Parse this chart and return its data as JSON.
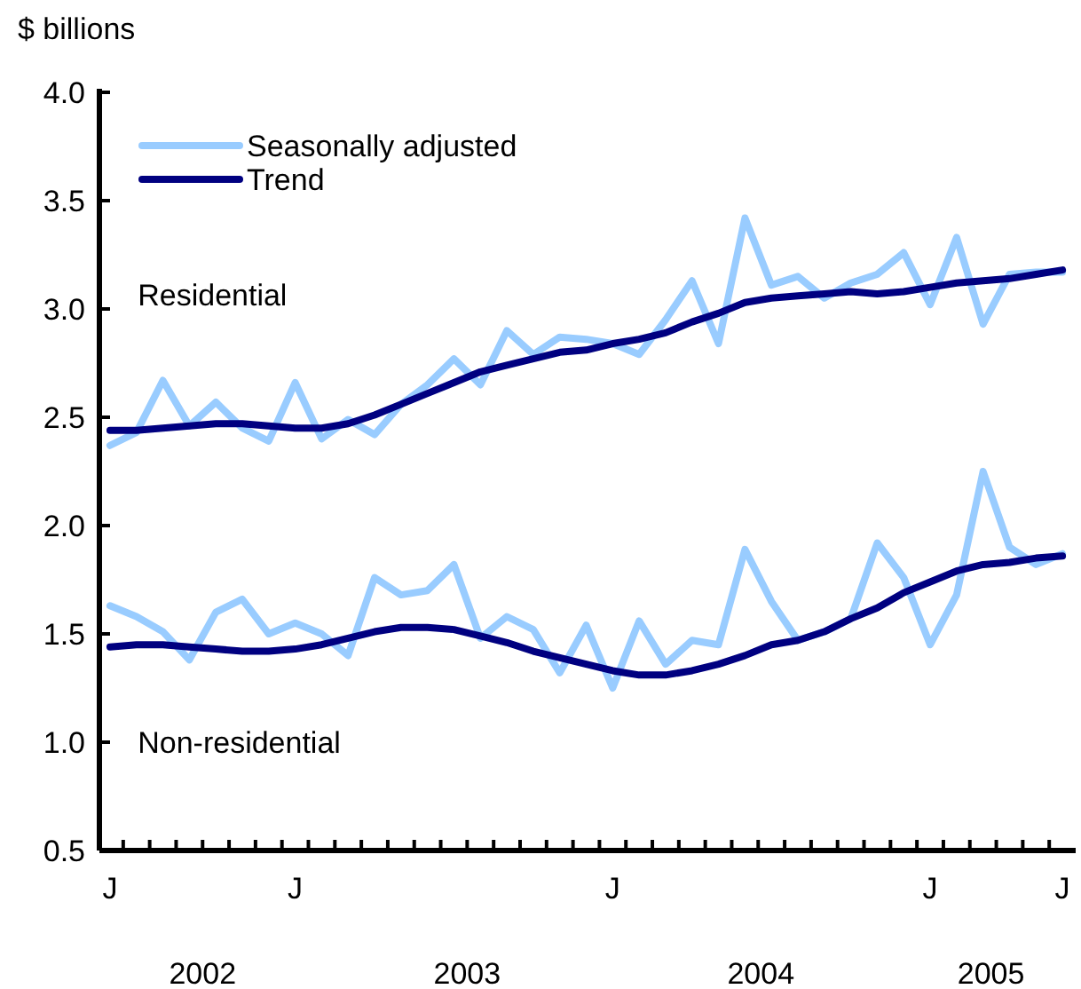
{
  "chart_data": {
    "type": "line",
    "ylabel": "$ billions",
    "categories": [
      "J",
      null,
      null,
      null,
      null,
      null,
      null,
      "J",
      null,
      null,
      null,
      null,
      null,
      null,
      null,
      null,
      null,
      null,
      null,
      "J",
      null,
      null,
      null,
      null,
      null,
      null,
      null,
      null,
      null,
      null,
      null,
      "J",
      null,
      null,
      null,
      null,
      "J"
    ],
    "series": [
      {
        "name": "Seasonally adjusted",
        "color": "#99ccff",
        "values": [
          2.37,
          2.43,
          2.67,
          2.46,
          2.57,
          2.45,
          2.39,
          2.66,
          2.4,
          2.49,
          2.42,
          2.56,
          2.65,
          2.77,
          2.65,
          2.9,
          2.79,
          2.87,
          2.86,
          2.84,
          2.79,
          2.95,
          3.13,
          2.84,
          3.42,
          3.11,
          3.15,
          3.05,
          3.12,
          3.16,
          3.26,
          3.02,
          3.33,
          2.93,
          3.16,
          3.17,
          3.17
        ]
      },
      {
        "name": "Trend",
        "color": "#000080",
        "values": [
          2.44,
          2.44,
          2.45,
          2.46,
          2.47,
          2.47,
          2.46,
          2.45,
          2.45,
          2.47,
          2.51,
          2.56,
          2.61,
          2.66,
          2.71,
          2.74,
          2.77,
          2.8,
          2.81,
          2.84,
          2.86,
          2.89,
          2.94,
          2.98,
          3.03,
          3.05,
          3.06,
          3.07,
          3.08,
          3.07,
          3.08,
          3.1,
          3.12,
          3.13,
          3.14,
          3.16,
          3.18
        ]
      },
      {
        "color": "#99ccff",
        "values": [
          1.63,
          1.58,
          1.51,
          1.38,
          1.6,
          1.66,
          1.5,
          1.55,
          1.5,
          1.4,
          1.76,
          1.68,
          1.7,
          1.82,
          1.48,
          1.58,
          1.52,
          1.32,
          1.54,
          1.25,
          1.56,
          1.36,
          1.47,
          1.45,
          1.89,
          1.65,
          1.47,
          1.51,
          1.57,
          1.92,
          1.76,
          1.45,
          1.68,
          2.25,
          1.9,
          1.82,
          1.87
        ]
      },
      {
        "color": "#000080",
        "values": [
          1.44,
          1.45,
          1.45,
          1.44,
          1.43,
          1.42,
          1.42,
          1.43,
          1.45,
          1.48,
          1.51,
          1.53,
          1.53,
          1.52,
          1.49,
          1.46,
          1.42,
          1.39,
          1.36,
          1.33,
          1.31,
          1.31,
          1.33,
          1.36,
          1.4,
          1.45,
          1.47,
          1.51,
          1.57,
          1.62,
          1.69,
          1.74,
          1.79,
          1.82,
          1.83,
          1.85,
          1.86
        ]
      }
    ],
    "ylim": [
      0.5,
      4.0
    ],
    "yticks": [
      {
        "value": 0.5,
        "label": "0.5"
      },
      {
        "value": 1,
        "label": "1.0"
      },
      {
        "value": 1.5,
        "label": "1.5"
      },
      {
        "value": 2,
        "label": "2.0"
      },
      {
        "value": 2.5,
        "label": "2.5"
      },
      {
        "value": 3,
        "label": "3.0"
      },
      {
        "value": 3.5,
        "label": "3.5"
      },
      {
        "value": 4,
        "label": "4.0"
      }
    ],
    "annotations": [
      "Residential",
      "Non-residential",
      "2002",
      "2003",
      "2004",
      "2005"
    ],
    "grid": false,
    "legend": "top left",
    "marker": "none",
    "line_style": "solid"
  }
}
